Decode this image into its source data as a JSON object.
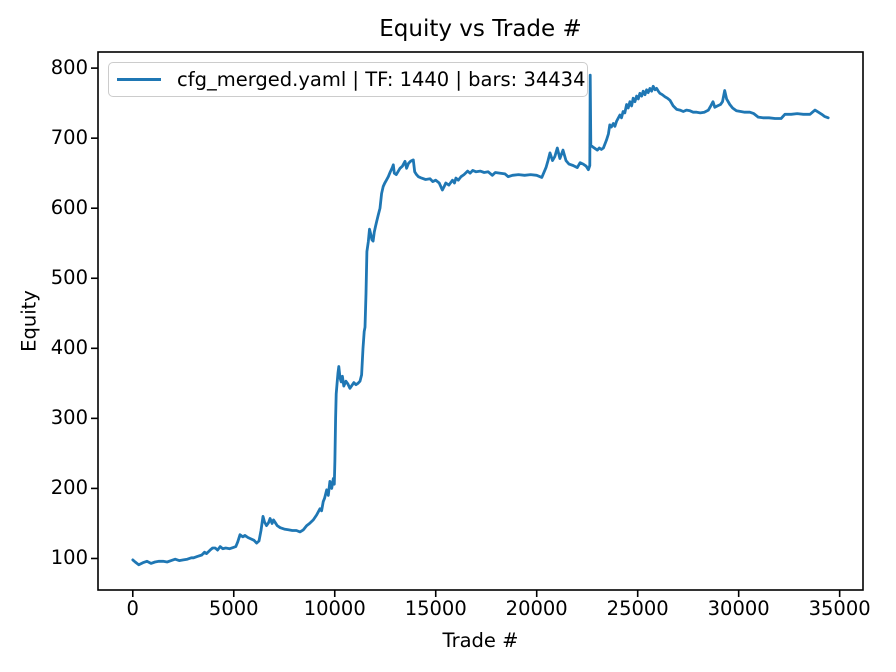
{
  "chart_data": {
    "type": "line",
    "title": "Equity vs Trade #",
    "xlabel": "Trade #",
    "ylabel": "Equity",
    "xlim": [
      -1722,
      36156
    ],
    "ylim": [
      55,
      823
    ],
    "xticks": [
      0,
      5000,
      10000,
      15000,
      20000,
      25000,
      30000,
      35000
    ],
    "yticks": [
      100,
      200,
      300,
      400,
      500,
      600,
      700,
      800
    ],
    "grid": false,
    "legend_position": "upper left",
    "line_color": "#1f77b4",
    "line_width": 2.8,
    "axis_color": "#000000",
    "legend_border_color": "#cccccc",
    "series": [
      {
        "name": "cfg_merged.yaml | TF: 1440 | bars: 34434",
        "x": [
          0,
          120,
          300,
          500,
          700,
          900,
          1100,
          1300,
          1500,
          1700,
          1900,
          2100,
          2300,
          2500,
          2700,
          2900,
          3010,
          3200,
          3420,
          3550,
          3650,
          3830,
          3950,
          4080,
          4200,
          4330,
          4450,
          4600,
          4800,
          5000,
          5100,
          5200,
          5310,
          5450,
          5550,
          5700,
          5850,
          6000,
          6130,
          6250,
          6350,
          6450,
          6520,
          6620,
          6720,
          6800,
          6900,
          6970,
          7060,
          7150,
          7300,
          7500,
          7700,
          7900,
          8100,
          8280,
          8450,
          8610,
          8750,
          8940,
          9100,
          9270,
          9350,
          9430,
          9500,
          9600,
          9680,
          9760,
          9850,
          9930,
          9980,
          10010,
          10040,
          10070,
          10120,
          10160,
          10200,
          10260,
          10320,
          10380,
          10450,
          10550,
          10650,
          10750,
          10850,
          10950,
          11050,
          11150,
          11250,
          11330,
          11400,
          11460,
          11500,
          11550,
          11590,
          11660,
          11720,
          11780,
          11840,
          11900,
          11960,
          12020,
          12070,
          12150,
          12240,
          12320,
          12400,
          12480,
          12560,
          12650,
          12750,
          12850,
          12900,
          12950,
          13050,
          13230,
          13350,
          13480,
          13560,
          13650,
          13750,
          13890,
          13960,
          14050,
          14140,
          14300,
          14500,
          14720,
          14850,
          15000,
          15170,
          15330,
          15420,
          15500,
          15650,
          15830,
          15930,
          16000,
          16120,
          16250,
          16400,
          16580,
          16700,
          16830,
          17000,
          17200,
          17400,
          17600,
          17800,
          17950,
          18200,
          18430,
          18590,
          18800,
          19100,
          19400,
          19700,
          20000,
          20250,
          20460,
          20560,
          20660,
          20780,
          20900,
          21020,
          21150,
          21300,
          21450,
          21600,
          21800,
          22010,
          22150,
          22300,
          22450,
          22560,
          22630,
          22650,
          22680,
          22760,
          22800,
          22900,
          23000,
          23100,
          23200,
          23300,
          23450,
          23550,
          23620,
          23700,
          23790,
          23870,
          23950,
          24120,
          24200,
          24280,
          24360,
          24450,
          24530,
          24615,
          24700,
          24780,
          24860,
          24945,
          25030,
          25110,
          25200,
          25275,
          25360,
          25440,
          25520,
          25605,
          25690,
          25770,
          25860,
          25935,
          26020,
          26100,
          26220,
          26350,
          26470,
          26600,
          26680,
          26760,
          26930,
          27090,
          27260,
          27420,
          27590,
          27750,
          27920,
          28100,
          28300,
          28500,
          28600,
          28730,
          28820,
          28950,
          29100,
          29200,
          29310,
          29400,
          29560,
          29700,
          29890,
          30100,
          30300,
          30550,
          30750,
          30965,
          31200,
          31500,
          31800,
          32100,
          32290,
          32600,
          32900,
          33200,
          33530,
          33780,
          33950,
          34110,
          34250,
          34434
        ],
        "y": [
          98,
          95,
          91,
          94,
          96,
          93,
          95,
          96,
          96,
          95,
          97,
          99,
          97,
          98,
          99,
          101,
          101,
          103,
          105,
          109,
          107,
          112,
          115,
          115,
          112,
          117,
          114,
          115,
          114,
          116,
          117,
          124,
          134,
          131,
          133,
          130,
          128,
          126,
          122,
          125,
          140,
          160,
          152,
          147,
          151,
          157,
          150,
          155,
          151,
          147,
          144,
          142,
          141,
          140,
          140,
          138,
          141,
          147,
          150,
          155,
          162,
          171,
          168,
          181,
          186,
          198,
          190,
          210,
          200,
          214,
          206,
          240,
          300,
          335,
          352,
          365,
          374,
          358,
          352,
          360,
          346,
          353,
          349,
          343,
          347,
          351,
          348,
          350,
          353,
          362,
          400,
          424,
          430,
          478,
          538,
          552,
          570,
          563,
          555,
          553,
          566,
          574,
          580,
          590,
          600,
          621,
          631,
          636,
          640,
          645,
          652,
          658,
          662,
          650,
          648,
          657,
          660,
          667,
          657,
          664,
          667,
          669,
          652,
          648,
          645,
          643,
          641,
          642,
          638,
          640,
          636,
          626,
          631,
          636,
          633,
          640,
          636,
          643,
          640,
          645,
          648,
          653,
          650,
          654,
          652,
          653,
          651,
          652,
          647,
          651,
          650,
          649,
          645,
          647,
          648,
          647,
          648,
          647,
          644,
          658,
          668,
          679,
          668,
          674,
          686,
          671,
          683,
          668,
          663,
          661,
          658,
          665,
          663,
          660,
          655,
          661,
          790,
          690,
          688,
          687,
          685,
          683,
          686,
          684,
          686,
          697,
          706,
          719,
          716,
          721,
          717,
          724,
          733,
          729,
          738,
          736,
          748,
          743,
          752,
          746,
          757,
          752,
          760,
          756,
          764,
          760,
          767,
          762,
          769,
          765,
          771,
          767,
          774,
          769,
          771,
          767,
          764,
          762,
          759,
          757,
          754,
          750,
          746,
          741,
          740,
          738,
          740,
          739,
          737,
          737,
          736,
          737,
          740,
          745,
          752,
          744,
          746,
          748,
          752,
          768,
          756,
          748,
          743,
          739,
          738,
          737,
          737,
          735,
          730,
          729,
          729,
          728,
          728,
          734,
          734,
          735,
          734,
          734,
          740,
          737,
          734,
          731,
          729
        ]
      }
    ]
  }
}
